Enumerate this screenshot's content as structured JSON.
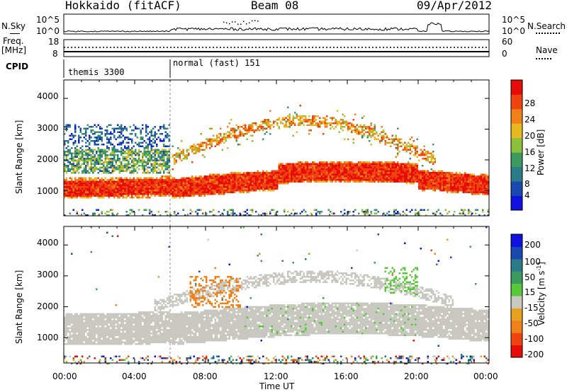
{
  "header": {
    "station": "Hokkaido (fitACF)",
    "beam": "Beam 08",
    "date": "09/Apr/2012"
  },
  "top_panels": {
    "nsky_label": "N.Sky",
    "nsky_ticks": [
      "10^5",
      "10^0"
    ],
    "nsearch_label": "N.Search",
    "nsearch_ticks": [
      "10^5",
      "10^0"
    ],
    "freq_label_1": "Freq.",
    "freq_label_2": "[MHz]",
    "freq_ticks": [
      "18",
      "8"
    ],
    "nave_label": "Nave",
    "nave_ticks": [
      "60",
      "0"
    ],
    "cpid_label": "CPID",
    "cpid_modes": [
      {
        "name": "themis 3300",
        "start_hour": 0,
        "end_hour": 6
      },
      {
        "name": "normal (fast) 151",
        "start_hour": 6,
        "end_hour": 24
      }
    ]
  },
  "chart_data": [
    {
      "type": "heatmap",
      "title": "Power",
      "ylabel": "Slant Range [km]",
      "yticks": [
        "1000",
        "2000",
        "3000",
        "4000"
      ],
      "ylim": [
        180,
        4600
      ],
      "xlim": [
        0,
        24
      ],
      "colorbar": {
        "label": "Power [dB]",
        "ticks": [
          "4",
          "8",
          "12",
          "16",
          "20",
          "24",
          "28"
        ],
        "range": [
          0,
          32
        ],
        "colors": [
          "#1010e0",
          "#1848b0",
          "#2a7a8a",
          "#3c9a60",
          "#8cc03c",
          "#e8b820",
          "#f08018",
          "#f04410",
          "#e80c08"
        ]
      },
      "features": [
        {
          "desc": "strong near-range band",
          "x_hours": [
            0,
            24
          ],
          "range_km": [
            900,
            1500
          ],
          "power_db": 28
        },
        {
          "desc": "E-region/scatter band early hours",
          "x_hours": [
            0,
            6
          ],
          "range_km": [
            1600,
            2400
          ],
          "power_db": 12
        },
        {
          "desc": "weak scatter early hours",
          "x_hours": [
            0,
            6
          ],
          "range_km": [
            2400,
            3200
          ],
          "power_db": 6
        },
        {
          "desc": "arc rising then falling",
          "x_hours": [
            6,
            21
          ],
          "range_km": [
            1800,
            3300
          ],
          "power_db": 22
        }
      ]
    },
    {
      "type": "heatmap",
      "title": "Velocity",
      "ylabel": "Slant Range [km]",
      "yticks": [
        "1000",
        "2000",
        "3000",
        "4000"
      ],
      "ylim": [
        180,
        4600
      ],
      "xlim": [
        0,
        24
      ],
      "xlabel": "Time UT",
      "xticks": [
        "00:00",
        "04:00",
        "08:00",
        "12:00",
        "16:00",
        "20:00",
        "00:00"
      ],
      "colorbar": {
        "label": "Velocity [m s^-1]",
        "ticks": [
          "200",
          "100",
          "50",
          "15",
          "-15",
          "-50",
          "-100",
          "-200"
        ],
        "range": [
          -250,
          250
        ],
        "colors": [
          "#e80c08",
          "#f04410",
          "#f08018",
          "#e8a020",
          "#c8c8c0",
          "#58c838",
          "#3c9a60",
          "#2a7a8a",
          "#1848b0",
          "#1010e0"
        ]
      },
      "features": [
        {
          "desc": "ground scatter (grey)",
          "x_hours": [
            0,
            24
          ],
          "range_km": [
            900,
            2300
          ],
          "velocity": 0
        },
        {
          "desc": "orange patches",
          "x_hours": [
            7,
            10
          ],
          "range_km": [
            2000,
            3000
          ],
          "velocity": -60
        },
        {
          "desc": "green patches",
          "x_hours": [
            18,
            20
          ],
          "range_km": [
            2400,
            3300
          ],
          "velocity": 60
        }
      ]
    }
  ]
}
